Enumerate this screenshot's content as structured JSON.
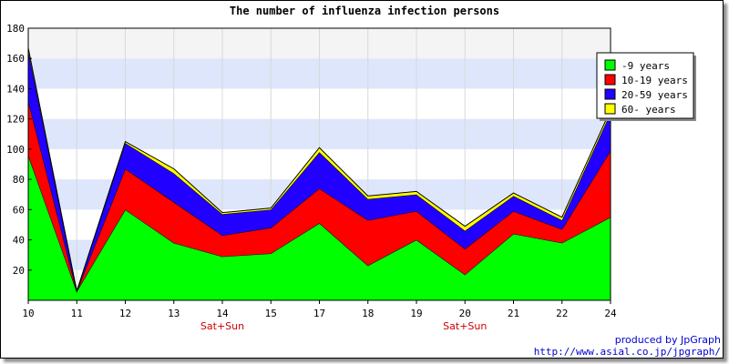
{
  "chart_data": {
    "type": "area",
    "stacked": true,
    "title": "The number of influenza infection persons",
    "xlabel": "",
    "ylabel": "",
    "categories": [
      "10",
      "11",
      "12",
      "13",
      "14",
      "15",
      "17",
      "18",
      "19",
      "20",
      "21",
      "22",
      "24"
    ],
    "category_notes": [
      {
        "category": "14",
        "text": "Sat+Sun"
      },
      {
        "category": "20",
        "text": "Sat+Sun"
      }
    ],
    "ylim": [
      0,
      180
    ],
    "yticks": [
      20,
      40,
      60,
      80,
      100,
      120,
      140,
      160,
      180
    ],
    "grid": true,
    "legend_position": "top-right",
    "series": [
      {
        "name": "-9 years",
        "color": "#00ff00",
        "values": [
          96,
          6,
          60,
          38,
          29,
          31,
          51,
          23,
          40,
          17,
          44,
          38,
          55
        ]
      },
      {
        "name": "10-19 years",
        "color": "#ff0000",
        "values": [
          36,
          0,
          27,
          27,
          14,
          17,
          23,
          30,
          19,
          17,
          15,
          9,
          44
        ]
      },
      {
        "name": "20-59 years",
        "color": "#2200ff",
        "values": [
          33,
          0,
          17,
          19,
          14,
          12,
          24,
          14,
          11,
          12,
          10,
          6,
          25
        ]
      },
      {
        "name": "60- years",
        "color": "#ffff00",
        "values": [
          2,
          0,
          1,
          3,
          1,
          1,
          3,
          2,
          2,
          3,
          2,
          2,
          2
        ]
      }
    ]
  },
  "footer": {
    "produced_by": "produced by JpGraph",
    "url": "http://www.asial.co.jp/jpgraph/"
  }
}
